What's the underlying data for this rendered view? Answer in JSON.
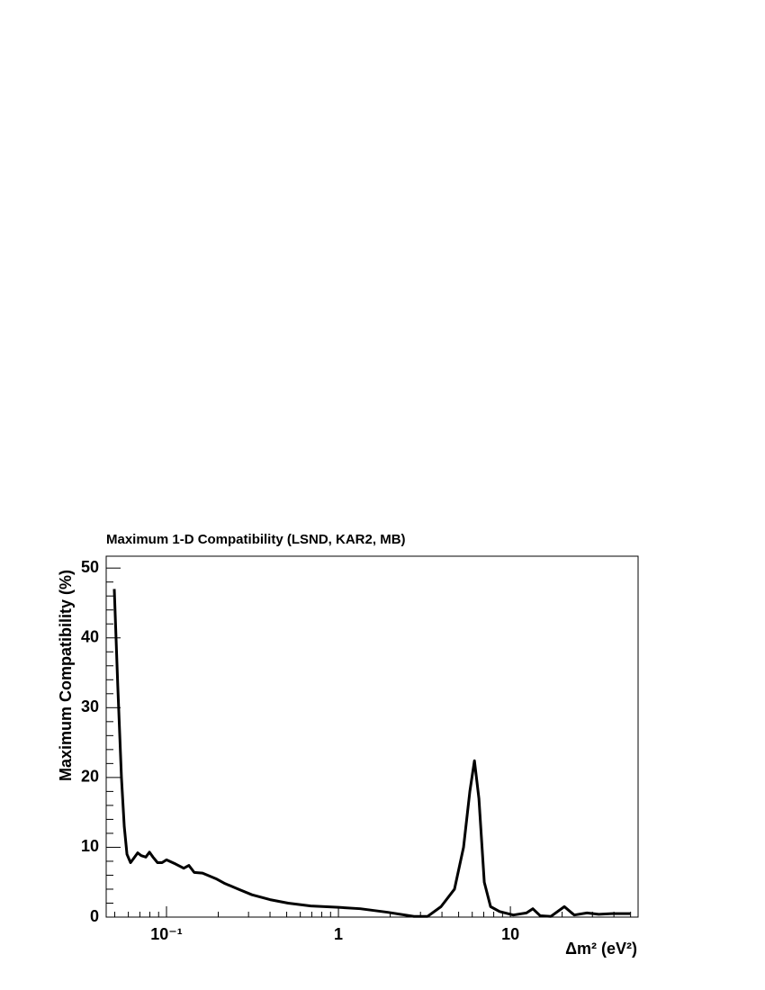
{
  "chart_data": {
    "type": "line",
    "title": "Maximum 1-D Compatibility (LSND, KAR2, MB)",
    "x_label": "Δm² (eV²)",
    "y_label": "Maximum Compatibility (%)",
    "x_scale": "log",
    "xlim": [
      0.0446,
      55.3
    ],
    "ylim": [
      0,
      51.7
    ],
    "xticks": [
      {
        "value": 0.1,
        "label": "10⁻¹"
      },
      1,
      10
    ],
    "x_minor_ticks": [
      0.05,
      0.06,
      0.07,
      0.08,
      0.09,
      0.2,
      0.3,
      0.4,
      0.5,
      0.6,
      0.7,
      0.8,
      0.9,
      2,
      3,
      4,
      5,
      6,
      7,
      8,
      9,
      20,
      30,
      40,
      50
    ],
    "yticks": [
      0,
      10,
      20,
      30,
      40,
      50
    ],
    "y_minor_ticks": [
      2,
      4,
      6,
      8,
      12,
      14,
      16,
      18,
      22,
      24,
      26,
      28,
      32,
      34,
      36,
      38,
      42,
      44,
      46,
      48
    ],
    "grid": false,
    "series": [
      {
        "color": "#000000",
        "x": [
          0.0497,
          0.0521,
          0.0547,
          0.0568,
          0.0589,
          0.0618,
          0.0648,
          0.068,
          0.0713,
          0.0758,
          0.0796,
          0.0834,
          0.0887,
          0.0942,
          0.1,
          0.113,
          0.126,
          0.135,
          0.145,
          0.162,
          0.194,
          0.219,
          0.262,
          0.314,
          0.4,
          0.51,
          0.69,
          1,
          1.34,
          1.92,
          2.75,
          3.3,
          3.95,
          4.73,
          5.34,
          5.81,
          6.18,
          6.56,
          7.05,
          7.67,
          8.65,
          10.4,
          12.4,
          13.5,
          14.9,
          17.2,
          20.6,
          23.5,
          27.9,
          32.6,
          39.1,
          49.7
        ],
        "values": [
          47,
          33,
          20,
          13,
          9,
          7.8,
          8.5,
          9.2,
          8.8,
          8.6,
          9.3,
          8.6,
          7.8,
          7.8,
          8.2,
          7.6,
          7.0,
          7.4,
          6.4,
          6.3,
          5.5,
          4.8,
          4.0,
          3.2,
          2.5,
          2.0,
          1.6,
          1.4,
          1.2,
          0.7,
          0.1,
          0.1,
          1.5,
          4,
          10,
          18,
          22.4,
          17,
          5,
          1.5,
          0.8,
          0.3,
          0.6,
          1.2,
          0.2,
          0.1,
          1.5,
          0.3,
          0.6,
          0.4,
          0.5,
          0.5
        ]
      }
    ]
  }
}
